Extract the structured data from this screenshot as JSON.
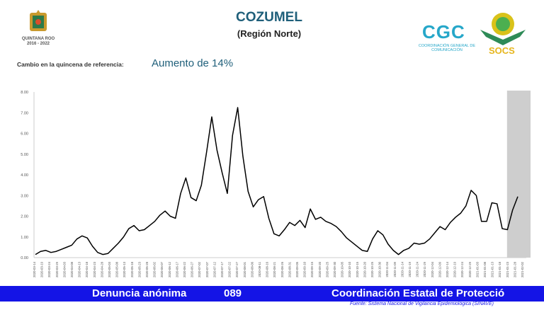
{
  "header": {
    "title": "COZUMEL",
    "subtitle": "(Región Norte)",
    "left_logo_text": "QUINTANA ROO",
    "left_logo_sub": "2016 - 2022",
    "cgc_logo": "CGC",
    "cgc_sub": "COORDINACIÓN GENERAL DE COMUNICACIÓN",
    "socs_logo": "SOCS"
  },
  "change": {
    "label": "Cambio en la quincena de referencia:",
    "value": "Aumento de 14%"
  },
  "footer": {
    "left": "Denuncia anónima",
    "number": "089",
    "right": "Coordinación Estatal de Protecció",
    "source": "Fuente: Sistema Nacional de Vigilancia Epidemiológica (SINAVE)"
  },
  "colors": {
    "title": "#1f5f7a",
    "line": "#000000",
    "footer_bar": "#1414e6",
    "cgc": "#26a7c9",
    "socs": "#e6b51b",
    "shade": "#bdbdbd"
  },
  "chart_data": {
    "type": "line",
    "title": "",
    "xlabel": "",
    "ylabel": "",
    "ylim": [
      0,
      8
    ],
    "y_ticks": [
      "0.00",
      "1.00",
      "2.00",
      "3.00",
      "4.00",
      "5.00",
      "6.00",
      "7.00",
      "8.00"
    ],
    "x_tick_labels": [
      "2020-03-14",
      "2020-03-19",
      "2020-03-24",
      "2020-03-29",
      "2020-04-03",
      "2020-04-08",
      "2020-04-13",
      "2020-04-18",
      "2020-04-23",
      "2020-04-28",
      "2020-05-03",
      "2020-05-08",
      "2020-05-13",
      "2020-05-18",
      "2020-05-23",
      "2020-05-28",
      "2020-06-02",
      "2020-06-07",
      "2020-06-12",
      "2020-06-17",
      "2020-06-22",
      "2020-06-27",
      "2020-07-02",
      "2020-07-07",
      "2020-07-12",
      "2020-07-17",
      "2020-07-22",
      "2020-07-27",
      "2020-08-01",
      "2020-08-06",
      "2020-08-11",
      "2020-08-16",
      "2020-08-21",
      "2020-08-26",
      "2020-08-31",
      "2020-09-05",
      "2020-09-10",
      "2020-09-15",
      "2020-09-20",
      "2020-09-25",
      "2020-09-30",
      "2020-10-05",
      "2020-10-10",
      "2020-10-15",
      "2020-10-20",
      "2020-10-25",
      "2020-10-30",
      "2020-11-04",
      "2020-11-09",
      "2020-11-14",
      "2020-11-19",
      "2020-11-24",
      "2020-11-29",
      "2020-12-04",
      "2020-12-09",
      "2020-12-14",
      "2020-12-19",
      "2020-12-24",
      "2020-12-29",
      "2021-01-03",
      "2021-01-08",
      "2021-01-13",
      "2021-01-18",
      "2021-01-23",
      "2021-01-28",
      "2021-02-02"
    ],
    "shaded_range": [
      "2021-01-23",
      "2021-02-02"
    ],
    "grid": false,
    "series": [
      {
        "values": [
          0.15,
          0.3,
          0.35,
          0.25,
          0.3,
          0.4,
          0.5,
          0.6,
          0.9,
          1.05,
          0.95,
          0.55,
          0.25,
          0.15,
          0.2,
          0.45,
          0.7,
          1.0,
          1.4,
          1.55,
          1.3,
          1.35,
          1.55,
          1.75,
          2.05,
          2.25,
          2.0,
          1.9,
          3.1,
          3.85,
          2.9,
          2.75,
          3.5,
          5.1,
          6.8,
          5.2,
          4.1,
          3.1,
          5.9,
          7.25,
          4.9,
          3.2,
          2.45,
          2.8,
          2.95,
          1.9,
          1.15,
          1.05,
          1.35,
          1.7,
          1.55,
          1.8,
          1.45,
          2.35,
          1.85,
          1.95,
          1.75,
          1.65,
          1.5,
          1.25,
          0.95,
          0.75,
          0.55,
          0.35,
          0.3,
          0.9,
          1.3,
          1.1,
          0.65,
          0.35,
          0.15,
          0.35,
          0.45,
          0.7,
          0.65,
          0.7,
          0.9,
          1.2,
          1.5,
          1.35,
          1.7,
          1.95,
          2.15,
          2.5,
          3.25,
          3.0,
          1.75,
          1.75,
          2.65,
          2.6,
          1.4,
          1.35,
          2.3,
          2.95
        ]
      }
    ]
  }
}
